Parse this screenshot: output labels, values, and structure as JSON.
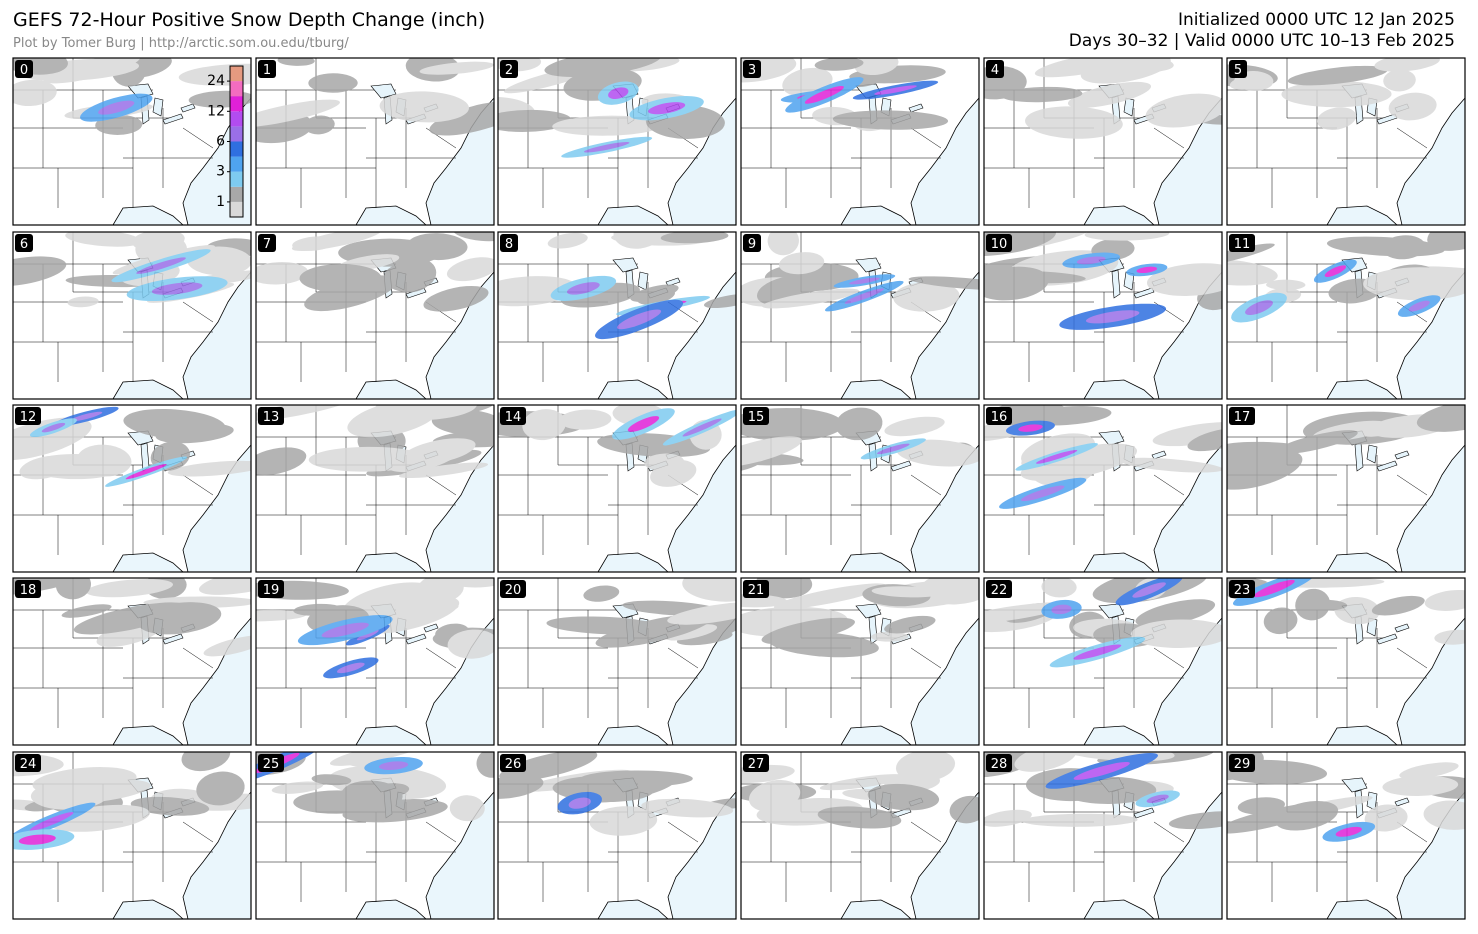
{
  "header": {
    "title": "GEFS 72-Hour Positive Snow Depth Change (inch)",
    "credit": "Plot by Tomer Burg | http://arctic.som.ou.edu/tburg/",
    "initialized": "Initialized 0000 UTC 12 Jan 2025",
    "valid": "Days 30–32 | Valid 0000 UTC 10–13 Feb 2025"
  },
  "panels": [
    "0",
    "1",
    "2",
    "3",
    "4",
    "5",
    "6",
    "7",
    "8",
    "9",
    "10",
    "11",
    "12",
    "13",
    "14",
    "15",
    "16",
    "17",
    "18",
    "19",
    "20",
    "21",
    "22",
    "23",
    "24",
    "25",
    "26",
    "27",
    "28",
    "29"
  ],
  "colorbar": {
    "levels": [
      0.1,
      1,
      2,
      3,
      4,
      6,
      8,
      12,
      18,
      24,
      36
    ],
    "colors": [
      "#d9d9d9",
      "#a8a8a8",
      "#7ecbf0",
      "#4fa3ef",
      "#2f6fe0",
      "#9a6fe8",
      "#b24cf0",
      "#e020d8",
      "#f36cc0",
      "#e59a80"
    ],
    "ticks": [
      1,
      3,
      6,
      12,
      24
    ]
  }
}
